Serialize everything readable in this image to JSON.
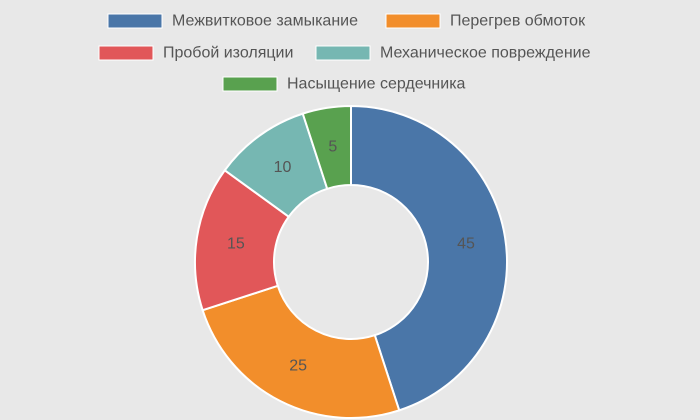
{
  "chart_data": {
    "type": "pie",
    "donut": true,
    "categories": [
      "Межвитковое замыкание",
      "Перегрев обмоток",
      "Пробой изоляции",
      "Механическое повреждение",
      "Насыщение сердечника"
    ],
    "values": [
      45,
      25,
      15,
      10,
      5
    ],
    "colors": [
      "#4a76a8",
      "#f28e2b",
      "#e15759",
      "#76b7b2",
      "#59a14f"
    ],
    "data_labels": [
      "45",
      "25",
      "15",
      "10",
      "5"
    ],
    "legend_position": "top"
  }
}
